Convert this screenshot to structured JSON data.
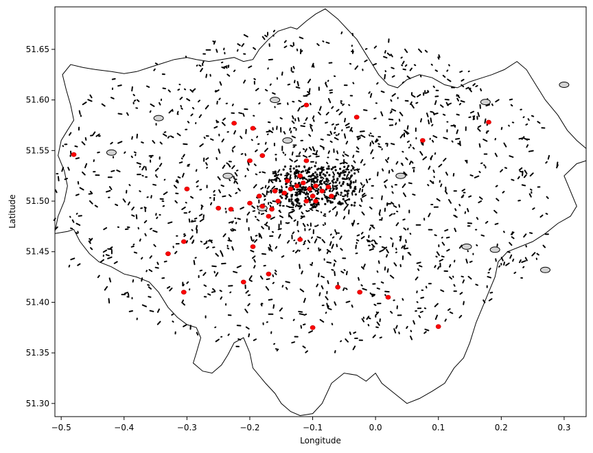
{
  "chart_data": {
    "type": "map",
    "xlabel": "Longitude",
    "ylabel": "Latitude",
    "xlim": [
      -0.51,
      0.335
    ],
    "ylim": [
      51.287,
      51.692
    ],
    "xticks": [
      {
        "value": -0.5,
        "label": "−0.5"
      },
      {
        "value": -0.4,
        "label": "−0.4"
      },
      {
        "value": -0.3,
        "label": "−0.3"
      },
      {
        "value": -0.2,
        "label": "−0.2"
      },
      {
        "value": -0.1,
        "label": "−0.1"
      },
      {
        "value": 0.0,
        "label": "0.0"
      },
      {
        "value": 0.1,
        "label": "0.1"
      },
      {
        "value": 0.2,
        "label": "0.2"
      },
      {
        "value": 0.3,
        "label": "0.3"
      }
    ],
    "yticks": [
      {
        "value": 51.3,
        "label": "51.30"
      },
      {
        "value": 51.35,
        "label": "51.35"
      },
      {
        "value": 51.4,
        "label": "51.40"
      },
      {
        "value": 51.45,
        "label": "51.45"
      },
      {
        "value": 51.5,
        "label": "51.50"
      },
      {
        "value": 51.55,
        "label": "51.55"
      },
      {
        "value": 51.6,
        "label": "51.60"
      },
      {
        "value": 51.65,
        "label": "51.65"
      }
    ],
    "grid": false,
    "boundary": [
      [
        -0.51,
        51.468
      ],
      [
        -0.49,
        51.47
      ],
      [
        -0.48,
        51.472
      ],
      [
        -0.47,
        51.46
      ],
      [
        -0.455,
        51.448
      ],
      [
        -0.44,
        51.44
      ],
      [
        -0.42,
        51.435
      ],
      [
        -0.4,
        51.428
      ],
      [
        -0.38,
        51.425
      ],
      [
        -0.36,
        51.42
      ],
      [
        -0.345,
        51.41
      ],
      [
        -0.33,
        51.395
      ],
      [
        -0.315,
        51.385
      ],
      [
        -0.3,
        51.378
      ],
      [
        -0.285,
        51.375
      ],
      [
        -0.278,
        51.365
      ],
      [
        -0.285,
        51.35
      ],
      [
        -0.29,
        51.34
      ],
      [
        -0.275,
        51.332
      ],
      [
        -0.26,
        51.33
      ],
      [
        -0.245,
        51.338
      ],
      [
        -0.235,
        51.348
      ],
      [
        -0.225,
        51.36
      ],
      [
        -0.21,
        51.365
      ],
      [
        -0.2,
        51.35
      ],
      [
        -0.195,
        51.335
      ],
      [
        -0.175,
        51.32
      ],
      [
        -0.16,
        51.31
      ],
      [
        -0.15,
        51.3
      ],
      [
        -0.135,
        51.292
      ],
      [
        -0.12,
        51.288
      ],
      [
        -0.1,
        51.29
      ],
      [
        -0.085,
        51.3
      ],
      [
        -0.07,
        51.32
      ],
      [
        -0.05,
        51.33
      ],
      [
        -0.03,
        51.328
      ],
      [
        -0.015,
        51.322
      ],
      [
        0.0,
        51.33
      ],
      [
        0.01,
        51.32
      ],
      [
        0.03,
        51.31
      ],
      [
        0.05,
        51.3
      ],
      [
        0.07,
        51.305
      ],
      [
        0.09,
        51.312
      ],
      [
        0.11,
        51.32
      ],
      [
        0.125,
        51.335
      ],
      [
        0.14,
        51.345
      ],
      [
        0.15,
        51.36
      ],
      [
        0.16,
        51.38
      ],
      [
        0.17,
        51.395
      ],
      [
        0.18,
        51.41
      ],
      [
        0.19,
        51.425
      ],
      [
        0.195,
        51.44
      ],
      [
        0.21,
        51.45
      ],
      [
        0.23,
        51.455
      ],
      [
        0.25,
        51.46
      ],
      [
        0.27,
        51.468
      ],
      [
        0.29,
        51.478
      ],
      [
        0.31,
        51.485
      ],
      [
        0.32,
        51.495
      ],
      [
        0.31,
        51.51
      ],
      [
        0.3,
        51.525
      ],
      [
        0.32,
        51.537
      ],
      [
        0.335,
        51.54
      ],
      [
        0.335,
        51.552
      ],
      [
        0.32,
        51.56
      ],
      [
        0.305,
        51.57
      ],
      [
        0.29,
        51.585
      ],
      [
        0.27,
        51.6
      ],
      [
        0.255,
        51.615
      ],
      [
        0.24,
        51.63
      ],
      [
        0.225,
        51.638
      ],
      [
        0.205,
        51.63
      ],
      [
        0.185,
        51.625
      ],
      [
        0.17,
        51.622
      ],
      [
        0.15,
        51.618
      ],
      [
        0.13,
        51.612
      ],
      [
        0.11,
        51.615
      ],
      [
        0.09,
        51.622
      ],
      [
        0.07,
        51.625
      ],
      [
        0.05,
        51.62
      ],
      [
        0.035,
        51.612
      ],
      [
        0.02,
        51.615
      ],
      [
        0.005,
        51.625
      ],
      [
        -0.005,
        51.635
      ],
      [
        -0.015,
        51.645
      ],
      [
        -0.03,
        51.66
      ],
      [
        -0.045,
        51.67
      ],
      [
        -0.06,
        51.68
      ],
      [
        -0.08,
        51.69
      ],
      [
        -0.095,
        51.685
      ],
      [
        -0.11,
        51.678
      ],
      [
        -0.125,
        51.67
      ],
      [
        -0.135,
        51.672
      ],
      [
        -0.155,
        51.668
      ],
      [
        -0.17,
        51.66
      ],
      [
        -0.185,
        51.65
      ],
      [
        -0.195,
        51.64
      ],
      [
        -0.21,
        51.638
      ],
      [
        -0.225,
        51.642
      ],
      [
        -0.245,
        51.64
      ],
      [
        -0.265,
        51.638
      ],
      [
        -0.285,
        51.64
      ],
      [
        -0.3,
        51.642
      ],
      [
        -0.32,
        51.64
      ],
      [
        -0.34,
        51.636
      ],
      [
        -0.36,
        51.632
      ],
      [
        -0.38,
        51.628
      ],
      [
        -0.4,
        51.626
      ],
      [
        -0.42,
        51.628
      ],
      [
        -0.445,
        51.63
      ],
      [
        -0.465,
        51.632
      ],
      [
        -0.485,
        51.635
      ],
      [
        -0.498,
        51.625
      ],
      [
        -0.492,
        51.61
      ],
      [
        -0.485,
        51.595
      ],
      [
        -0.48,
        51.58
      ],
      [
        -0.49,
        51.57
      ],
      [
        -0.5,
        51.56
      ],
      [
        -0.505,
        51.545
      ],
      [
        -0.495,
        51.53
      ],
      [
        -0.49,
        51.515
      ],
      [
        -0.495,
        51.5
      ],
      [
        -0.505,
        51.485
      ],
      [
        -0.51,
        51.47
      ]
    ],
    "red_markers": [
      [
        -0.48,
        51.546
      ],
      [
        -0.225,
        51.577
      ],
      [
        -0.195,
        51.572
      ],
      [
        -0.11,
        51.595
      ],
      [
        -0.03,
        51.583
      ],
      [
        0.075,
        51.56
      ],
      [
        0.18,
        51.578
      ],
      [
        -0.2,
        51.54
      ],
      [
        -0.18,
        51.545
      ],
      [
        -0.11,
        51.54
      ],
      [
        -0.3,
        51.512
      ],
      [
        -0.25,
        51.493
      ],
      [
        -0.23,
        51.492
      ],
      [
        -0.2,
        51.498
      ],
      [
        -0.18,
        51.495
      ],
      [
        -0.165,
        51.492
      ],
      [
        -0.155,
        51.5
      ],
      [
        -0.145,
        51.508
      ],
      [
        -0.135,
        51.512
      ],
      [
        -0.125,
        51.515
      ],
      [
        -0.115,
        51.518
      ],
      [
        -0.105,
        51.512
      ],
      [
        -0.095,
        51.515
      ],
      [
        -0.085,
        51.51
      ],
      [
        -0.075,
        51.514
      ],
      [
        -0.14,
        51.52
      ],
      [
        -0.12,
        51.525
      ],
      [
        -0.1,
        51.505
      ],
      [
        -0.11,
        51.5
      ],
      [
        -0.095,
        51.5
      ],
      [
        -0.07,
        51.505
      ],
      [
        -0.16,
        51.51
      ],
      [
        -0.185,
        51.505
      ],
      [
        -0.17,
        51.485
      ],
      [
        -0.12,
        51.462
      ],
      [
        -0.305,
        51.46
      ],
      [
        -0.33,
        51.448
      ],
      [
        -0.195,
        51.455
      ],
      [
        -0.21,
        51.42
      ],
      [
        -0.17,
        51.428
      ],
      [
        -0.305,
        51.41
      ],
      [
        -0.06,
        51.415
      ],
      [
        -0.025,
        51.41
      ],
      [
        0.02,
        51.405
      ],
      [
        -0.1,
        51.375
      ],
      [
        0.1,
        51.376
      ]
    ],
    "small_parks": [
      [
        -0.42,
        51.548
      ],
      [
        0.27,
        51.432
      ],
      [
        0.19,
        51.452
      ],
      [
        0.145,
        51.455
      ],
      [
        -0.18,
        51.493
      ],
      [
        -0.235,
        51.525
      ],
      [
        -0.16,
        51.6
      ],
      [
        -0.345,
        51.582
      ],
      [
        0.175,
        51.598
      ],
      [
        0.3,
        51.615
      ],
      [
        -0.14,
        51.56
      ],
      [
        0.04,
        51.525
      ]
    ]
  }
}
